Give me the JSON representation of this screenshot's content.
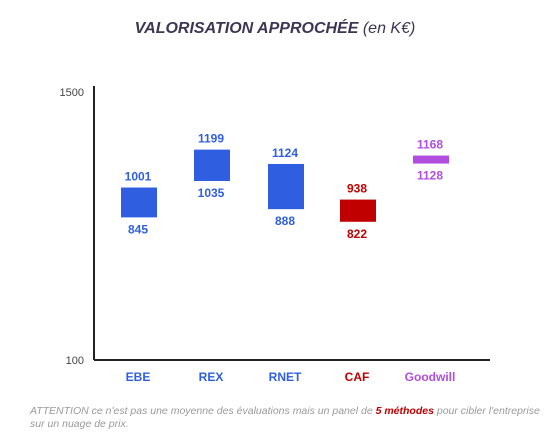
{
  "title": {
    "main": "VALORISATION APPROCHÉE",
    "sub": "(en K€)"
  },
  "chart_data": {
    "type": "floating-bar",
    "ylim": [
      100,
      1500
    ],
    "yticks": [
      100,
      1500
    ],
    "categories": [
      "EBE",
      "REX",
      "RNET",
      "CAF",
      "Goodwill"
    ],
    "ranges": [
      {
        "low": 845,
        "high": 1001,
        "low_label": "845",
        "high_label": "1001"
      },
      {
        "low": 1035,
        "high": 1199,
        "low_label": "1035",
        "high_label": "1199"
      },
      {
        "low": 888,
        "high": 1124,
        "low_label": "888",
        "high_label": "1124"
      },
      {
        "low": 822,
        "high": 938,
        "low_label": "822",
        "high_label": "938"
      },
      {
        "low": 1128,
        "high": 1168,
        "low_label": "1128",
        "high_label": "1168"
      }
    ],
    "colors": [
      "#2f5fe0",
      "#2f5fe0",
      "#2f5fe0",
      "#c00000",
      "#b14ee0"
    ]
  },
  "footnote": {
    "before": "ATTENTION ce n'est pas une moyenne des évaluations mais un panel de ",
    "bold": "5 méthodes",
    "after": " pour cibler l'entreprise sur un nuage de prix."
  }
}
